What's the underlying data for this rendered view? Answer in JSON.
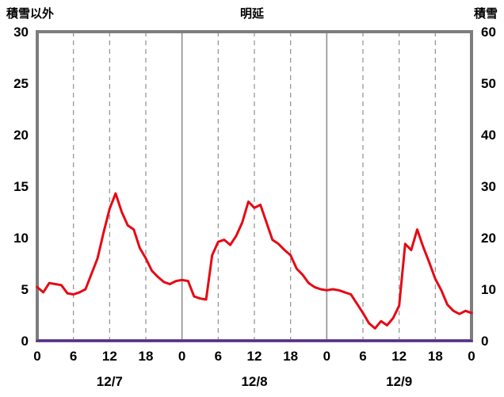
{
  "chart_data": {
    "type": "line",
    "title": "明延",
    "left_axis": {
      "label": "積雪以外",
      "min": 0,
      "max": 30,
      "ticks": [
        0,
        5,
        10,
        15,
        20,
        25,
        30
      ]
    },
    "right_axis": {
      "label": "積雪",
      "min": 0,
      "max": 60,
      "ticks": [
        0,
        10,
        20,
        30,
        40,
        50,
        60
      ]
    },
    "x_hours_total": 72,
    "x_tick_hours": [
      0,
      6,
      12,
      18,
      24,
      30,
      36,
      42,
      48,
      54,
      60,
      66,
      72
    ],
    "x_tick_labels": [
      "0",
      "6",
      "12",
      "18",
      "0",
      "6",
      "12",
      "18",
      "0",
      "6",
      "12",
      "18",
      "0"
    ],
    "date_labels": [
      {
        "label": "12/7",
        "hour": 12
      },
      {
        "label": "12/8",
        "hour": 36
      },
      {
        "label": "12/9",
        "hour": 60
      }
    ],
    "grid": {
      "vertical_dashed_at_hours": [
        6,
        12,
        18,
        30,
        36,
        42,
        54,
        60,
        66
      ],
      "vertical_solid_at_hours": [
        24,
        48
      ],
      "horizontal": false
    },
    "colors": {
      "border": "#7d7d7d",
      "grid": "#8f8f8f",
      "text": "#000000",
      "background": "#ffffff"
    },
    "series": [
      {
        "name": "積雪以外",
        "axis": "left",
        "color": "#e60914",
        "stroke_width": 3,
        "data_name": "series-other-than-snow",
        "values": [
          5.2,
          4.7,
          5.6,
          5.5,
          5.4,
          4.6,
          4.5,
          4.7,
          5.0,
          6.5,
          8.0,
          10.5,
          12.8,
          14.3,
          12.5,
          11.2,
          10.8,
          9.0,
          8.0,
          6.8,
          6.2,
          5.7,
          5.5,
          5.8,
          5.9,
          5.8,
          4.3,
          4.1,
          4.0,
          8.3,
          9.6,
          9.8,
          9.3,
          10.2,
          11.5,
          13.5,
          12.9,
          13.2,
          11.5,
          9.8,
          9.4,
          8.8,
          8.3,
          7.0,
          6.4,
          5.6,
          5.2,
          5.0,
          4.9,
          5.0,
          4.9,
          4.7,
          4.5,
          3.6,
          2.7,
          1.7,
          1.2,
          1.9,
          1.5,
          2.2,
          3.4,
          9.4,
          8.8,
          10.8,
          9.1,
          7.6,
          6.0,
          4.9,
          3.5,
          2.9,
          2.6,
          2.9,
          2.7
        ]
      },
      {
        "name": "積雪",
        "axis": "right",
        "color": "#5a2d91",
        "stroke_width": 3,
        "data_name": "series-snow-depth",
        "values": [
          0,
          0,
          0,
          0,
          0,
          0,
          0,
          0,
          0,
          0,
          0,
          0,
          0,
          0,
          0,
          0,
          0,
          0,
          0,
          0,
          0,
          0,
          0,
          0,
          0,
          0,
          0,
          0,
          0,
          0,
          0,
          0,
          0,
          0,
          0,
          0,
          0,
          0,
          0,
          0,
          0,
          0,
          0,
          0,
          0,
          0,
          0,
          0,
          0,
          0,
          0,
          0,
          0,
          0,
          0,
          0,
          0,
          0,
          0,
          0,
          0,
          0,
          0,
          0,
          0,
          0,
          0,
          0,
          0,
          0,
          0,
          0,
          0
        ]
      }
    ]
  }
}
